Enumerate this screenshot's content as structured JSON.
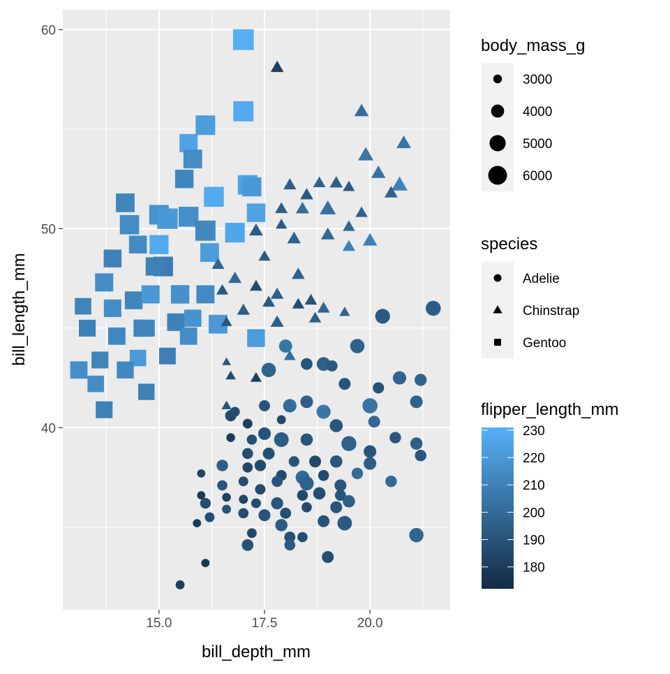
{
  "chart_data": {
    "type": "scatter",
    "xlabel": "bill_depth_mm",
    "ylabel": "bill_length_mm",
    "xlim": [
      12.72,
      21.9
    ],
    "ylim": [
      30.85,
      61.0
    ],
    "x_ticks": [
      15.0,
      17.5,
      20.0
    ],
    "x_tick_labels": [
      "15.0",
      "17.5",
      "20.0"
    ],
    "y_ticks": [
      40,
      50,
      60
    ],
    "y_tick_labels": [
      "40",
      "50",
      "60"
    ],
    "grid": true,
    "panel_background": "#EBEBEB",
    "fields": [
      "bill_depth_mm",
      "bill_length_mm",
      "body_mass_g",
      "flipper_length_mm"
    ],
    "legend_position": "right",
    "size_legend": {
      "title": "body_mass_g",
      "breaks": [
        3000,
        4000,
        5000,
        6000
      ],
      "labels": [
        "3000",
        "4000",
        "5000",
        "6000"
      ],
      "range": [
        2700,
        6300
      ]
    },
    "shape_legend": {
      "title": "species",
      "entries": [
        {
          "label": "Adelie",
          "shape": "circle"
        },
        {
          "label": "Chinstrap",
          "shape": "triangle"
        },
        {
          "label": "Gentoo",
          "shape": "square"
        }
      ]
    },
    "color_legend": {
      "title": "flipper_length_mm",
      "breaks": [
        180,
        190,
        200,
        210,
        220,
        230
      ],
      "labels": [
        "180",
        "190",
        "200",
        "210",
        "220",
        "230"
      ],
      "limits": [
        172,
        231
      ],
      "low": "#132B43",
      "high": "#56B1F7"
    },
    "series": [
      {
        "name": "Gentoo",
        "shape": "square",
        "points": [
          [
            17.0,
            59.5,
            6000,
            230
          ],
          [
            17.0,
            55.9,
            5800,
            228
          ],
          [
            16.1,
            55.2,
            5600,
            222
          ],
          [
            15.7,
            54.3,
            5100,
            225
          ],
          [
            15.8,
            53.5,
            5300,
            215
          ],
          [
            15.6,
            52.5,
            5200,
            212
          ],
          [
            16.3,
            51.6,
            5700,
            228
          ],
          [
            17.1,
            52.2,
            5600,
            225
          ],
          [
            17.2,
            52.1,
            5400,
            220
          ],
          [
            17.3,
            50.8,
            5200,
            224
          ],
          [
            14.2,
            51.3,
            5300,
            212
          ],
          [
            14.3,
            50.2,
            5500,
            215
          ],
          [
            15.0,
            50.7,
            5600,
            218
          ],
          [
            15.2,
            50.5,
            5900,
            220
          ],
          [
            15.7,
            50.6,
            5700,
            216
          ],
          [
            16.1,
            49.9,
            5800,
            213
          ],
          [
            16.8,
            49.8,
            5600,
            226
          ],
          [
            16.2,
            48.8,
            5300,
            222
          ],
          [
            14.5,
            49.2,
            5000,
            214
          ],
          [
            15.0,
            49.2,
            5400,
            228
          ],
          [
            15.1,
            48.1,
            5600,
            208
          ],
          [
            13.9,
            48.5,
            5000,
            210
          ],
          [
            13.7,
            47.3,
            5100,
            215
          ],
          [
            13.2,
            46.1,
            4600,
            211
          ],
          [
            13.3,
            45.0,
            4700,
            210
          ],
          [
            13.9,
            46.0,
            4900,
            215
          ],
          [
            14.4,
            46.4,
            5000,
            212
          ],
          [
            14.8,
            46.7,
            5100,
            220
          ],
          [
            15.5,
            46.7,
            5200,
            217
          ],
          [
            16.1,
            46.7,
            5100,
            214
          ],
          [
            15.4,
            45.3,
            4900,
            210
          ],
          [
            15.8,
            45.5,
            4800,
            218
          ],
          [
            16.4,
            45.2,
            5300,
            220
          ],
          [
            17.3,
            44.5,
            5000,
            222
          ],
          [
            15.7,
            44.6,
            4850,
            215
          ],
          [
            14.7,
            45.0,
            4700,
            212
          ],
          [
            14.5,
            43.5,
            4600,
            221
          ],
          [
            15.2,
            43.6,
            4650,
            209
          ],
          [
            13.6,
            43.4,
            4700,
            211
          ],
          [
            13.1,
            42.9,
            4850,
            216
          ],
          [
            13.5,
            42.2,
            4600,
            215
          ],
          [
            14.2,
            42.9,
            4750,
            213
          ],
          [
            14.7,
            41.8,
            4550,
            210
          ],
          [
            13.7,
            40.9,
            4700,
            210
          ],
          [
            14.9,
            48.1,
            5150,
            210
          ],
          [
            14.6,
            45.0,
            4800,
            211
          ],
          [
            14.0,
            44.6,
            4850,
            213
          ]
        ]
      },
      {
        "name": "Chinstrap",
        "shape": "triangle",
        "points": [
          [
            17.8,
            58.1,
            3700,
            181
          ],
          [
            19.8,
            55.9,
            4000,
            201
          ],
          [
            19.9,
            53.7,
            4300,
            205
          ],
          [
            20.8,
            54.3,
            4100,
            205
          ],
          [
            20.7,
            52.2,
            4500,
            210
          ],
          [
            20.2,
            52.8,
            4000,
            203
          ],
          [
            20.5,
            51.8,
            3750,
            197
          ],
          [
            18.1,
            52.2,
            3650,
            195
          ],
          [
            18.8,
            52.3,
            3550,
            196
          ],
          [
            19.2,
            52.3,
            3700,
            195
          ],
          [
            19.5,
            52.1,
            3450,
            193
          ],
          [
            18.5,
            51.7,
            3700,
            192
          ],
          [
            17.9,
            51.0,
            3600,
            195
          ],
          [
            18.4,
            51.0,
            3750,
            201
          ],
          [
            19.0,
            51.0,
            4500,
            203
          ],
          [
            19.8,
            50.8,
            3500,
            196
          ],
          [
            17.3,
            49.9,
            3900,
            194
          ],
          [
            17.9,
            50.2,
            3350,
            193
          ],
          [
            18.2,
            49.5,
            3800,
            196
          ],
          [
            19.0,
            49.7,
            3850,
            199
          ],
          [
            19.5,
            50.1,
            3500,
            199
          ],
          [
            20.0,
            49.4,
            4050,
            210
          ],
          [
            19.5,
            49.1,
            3600,
            210
          ],
          [
            17.5,
            48.6,
            3450,
            193
          ],
          [
            16.4,
            48.2,
            3600,
            199
          ],
          [
            16.8,
            47.5,
            3725,
            199
          ],
          [
            18.3,
            47.7,
            3700,
            196
          ],
          [
            17.3,
            47.1,
            3600,
            187
          ],
          [
            17.8,
            46.7,
            3650,
            195
          ],
          [
            16.5,
            46.9,
            3450,
            192
          ],
          [
            17.6,
            46.3,
            3600,
            193
          ],
          [
            18.3,
            46.2,
            3500,
            187
          ],
          [
            18.6,
            46.4,
            3550,
            190
          ],
          [
            18.9,
            46.0,
            3600,
            198
          ],
          [
            19.4,
            45.8,
            3200,
            197
          ],
          [
            17.0,
            45.9,
            3650,
            195
          ],
          [
            16.6,
            45.3,
            3250,
            191
          ],
          [
            17.8,
            45.3,
            3750,
            195
          ],
          [
            18.7,
            45.5,
            3500,
            195
          ],
          [
            18.1,
            43.6,
            3400,
            202
          ],
          [
            16.6,
            43.3,
            2900,
            192
          ],
          [
            16.7,
            42.6,
            3100,
            187
          ],
          [
            17.3,
            42.5,
            3300,
            181
          ],
          [
            16.6,
            41.1,
            3050,
            190
          ]
        ]
      },
      {
        "name": "Adelie",
        "shape": "circle",
        "points": [
          [
            21.5,
            46.0,
            4600,
            194
          ],
          [
            20.3,
            45.6,
            4550,
            193
          ],
          [
            19.7,
            44.1,
            4400,
            196
          ],
          [
            18.0,
            44.1,
            4050,
            205
          ],
          [
            17.6,
            42.9,
            4400,
            197
          ],
          [
            18.5,
            43.2,
            3650,
            190
          ],
          [
            18.9,
            43.2,
            4200,
            195
          ],
          [
            19.1,
            43.1,
            3500,
            192
          ],
          [
            19.4,
            42.2,
            3700,
            190
          ],
          [
            20.2,
            42.0,
            3550,
            189
          ],
          [
            20.7,
            42.5,
            4100,
            197
          ],
          [
            21.2,
            42.4,
            3750,
            196
          ],
          [
            20.0,
            41.1,
            4650,
            204
          ],
          [
            21.1,
            41.3,
            3900,
            196
          ],
          [
            20.1,
            40.3,
            3700,
            199
          ],
          [
            17.5,
            41.1,
            3500,
            190
          ],
          [
            18.1,
            41.1,
            4100,
            200
          ],
          [
            18.5,
            41.3,
            3900,
            195
          ],
          [
            18.9,
            40.8,
            4300,
            205
          ],
          [
            19.2,
            40.1,
            4000,
            191
          ],
          [
            16.8,
            40.8,
            3200,
            187
          ],
          [
            17.1,
            40.2,
            3200,
            182
          ],
          [
            17.9,
            40.4,
            3050,
            185
          ],
          [
            17.5,
            39.7,
            3900,
            190
          ],
          [
            16.7,
            39.5,
            3000,
            180
          ],
          [
            17.2,
            39.4,
            3300,
            188
          ],
          [
            17.9,
            39.4,
            4500,
            194
          ],
          [
            18.5,
            39.4,
            3800,
            190
          ],
          [
            19.5,
            39.2,
            4600,
            196
          ],
          [
            20.0,
            38.8,
            3900,
            190
          ],
          [
            20.6,
            39.5,
            3600,
            191
          ],
          [
            21.1,
            39.2,
            3800,
            195
          ],
          [
            21.2,
            38.6,
            3600,
            191
          ],
          [
            16.5,
            38.1,
            3600,
            195
          ],
          [
            17.1,
            38.7,
            3450,
            187
          ],
          [
            17.6,
            38.7,
            3700,
            188
          ],
          [
            18.2,
            38.3,
            3400,
            190
          ],
          [
            18.7,
            38.3,
            3700,
            185
          ],
          [
            19.2,
            38.3,
            3800,
            191
          ],
          [
            17.1,
            38.0,
            3300,
            184
          ],
          [
            17.4,
            38.1,
            3575,
            186
          ],
          [
            17.9,
            37.6,
            3400,
            185
          ],
          [
            18.4,
            37.5,
            4200,
            199
          ],
          [
            18.9,
            37.6,
            3450,
            186
          ],
          [
            19.7,
            37.7,
            3600,
            201
          ],
          [
            20.0,
            38.2,
            3900,
            194
          ],
          [
            20.5,
            37.3,
            3600,
            199
          ],
          [
            16.0,
            37.7,
            2900,
            183
          ],
          [
            16.5,
            37.1,
            3300,
            190
          ],
          [
            17.0,
            37.3,
            3200,
            187
          ],
          [
            17.4,
            36.9,
            3350,
            186
          ],
          [
            17.8,
            37.3,
            3500,
            190
          ],
          [
            18.5,
            37.2,
            4300,
            196
          ],
          [
            19.3,
            37.1,
            3700,
            191
          ],
          [
            16.1,
            36.2,
            3400,
            187
          ],
          [
            16.6,
            36.5,
            3000,
            182
          ],
          [
            17.0,
            36.4,
            3050,
            184
          ],
          [
            17.3,
            36.2,
            3200,
            187
          ],
          [
            17.8,
            36.2,
            3750,
            191
          ],
          [
            18.4,
            36.6,
            3450,
            185
          ],
          [
            18.8,
            36.7,
            3800,
            187
          ],
          [
            19.3,
            36.6,
            3500,
            190
          ],
          [
            19.5,
            36.3,
            3800,
            195
          ],
          [
            16.2,
            35.5,
            3200,
            187
          ],
          [
            16.6,
            35.9,
            3050,
            190
          ],
          [
            17.0,
            35.7,
            3300,
            187
          ],
          [
            17.5,
            35.6,
            3700,
            190
          ],
          [
            18.0,
            35.7,
            3500,
            188
          ],
          [
            18.5,
            36.0,
            3300,
            186
          ],
          [
            19.2,
            36.0,
            3700,
            191
          ],
          [
            15.9,
            35.2,
            2900,
            178
          ],
          [
            17.9,
            35.1,
            3800,
            193
          ],
          [
            18.9,
            35.3,
            3700,
            190
          ],
          [
            19.4,
            35.2,
            4450,
            193
          ],
          [
            17.2,
            34.7,
            3200,
            184
          ],
          [
            18.1,
            34.5,
            3500,
            188
          ],
          [
            18.4,
            34.5,
            3300,
            187
          ],
          [
            17.1,
            34.1,
            3650,
            189
          ],
          [
            18.1,
            34.1,
            3450,
            193
          ],
          [
            19.0,
            33.5,
            3700,
            187
          ],
          [
            16.1,
            33.2,
            2925,
            178
          ],
          [
            15.5,
            32.1,
            3050,
            181
          ],
          [
            21.1,
            34.6,
            4400,
            198
          ],
          [
            16.0,
            36.6,
            2900,
            178
          ],
          [
            16.7,
            40.6,
            3550,
            186
          ]
        ]
      }
    ]
  }
}
